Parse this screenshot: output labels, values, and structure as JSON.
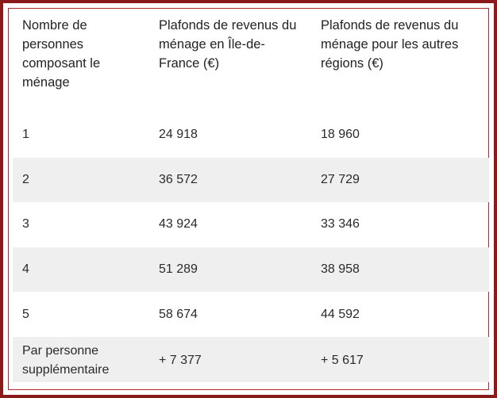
{
  "table": {
    "headers": [
      "Nombre de personnes composant le ménage",
      "Plafonds de revenus du ménage en Île-de-France (€)",
      "Plafonds de revenus du ménage pour les autres régions (€)"
    ],
    "rows": [
      [
        "1",
        "24 918",
        "18 960"
      ],
      [
        "2",
        "36 572",
        "27 729"
      ],
      [
        "3",
        "43 924",
        "33 346"
      ],
      [
        "4",
        "51 289",
        "38 958"
      ],
      [
        "5",
        "58 674",
        "44 592"
      ],
      [
        "Par personne supplémentaire",
        "+ 7 377",
        "+ 5 617"
      ]
    ]
  },
  "colors": {
    "frame": "#8b1a1a",
    "alt_row": "#efefef",
    "text": "#222222"
  }
}
